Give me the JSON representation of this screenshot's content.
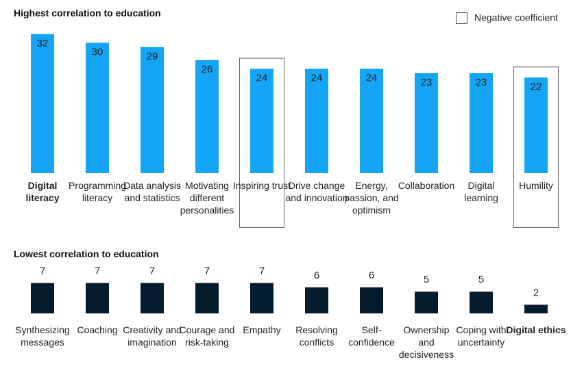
{
  "chart_data": [
    {
      "type": "bar",
      "title": "Highest correlation to education",
      "legend": "Negative coefficient",
      "categories": [
        "Digital literacy",
        "Programming literacy",
        "Data analysis and statistics",
        "Motivating different personalities",
        "Inspiring trust",
        "Drive change and innovation",
        "Energy, passion, and optimism",
        "Collaboration",
        "Digital learning",
        "Humility"
      ],
      "values": [
        32,
        30,
        29,
        26,
        24,
        24,
        24,
        23,
        23,
        22
      ],
      "negative_coefficient": [
        false,
        false,
        false,
        false,
        true,
        false,
        false,
        false,
        false,
        true
      ],
      "bold_categories": [
        "Digital literacy"
      ],
      "color": "#14a5f6",
      "label_position": "inside"
    },
    {
      "type": "bar",
      "title": "Lowest correlation to education",
      "categories": [
        "Synthesizing messages",
        "Coaching",
        "Creativity and imagination",
        "Courage and risk-taking",
        "Empathy",
        "Resolving conflicts",
        "Self-confidence",
        "Ownership and decisiveness",
        "Coping with uncertainty",
        "Digital ethics"
      ],
      "values": [
        7,
        7,
        7,
        7,
        7,
        6,
        6,
        5,
        5,
        2
      ],
      "bold_categories": [
        "Digital ethics"
      ],
      "color": "#051c2c",
      "label_position": "above"
    }
  ]
}
